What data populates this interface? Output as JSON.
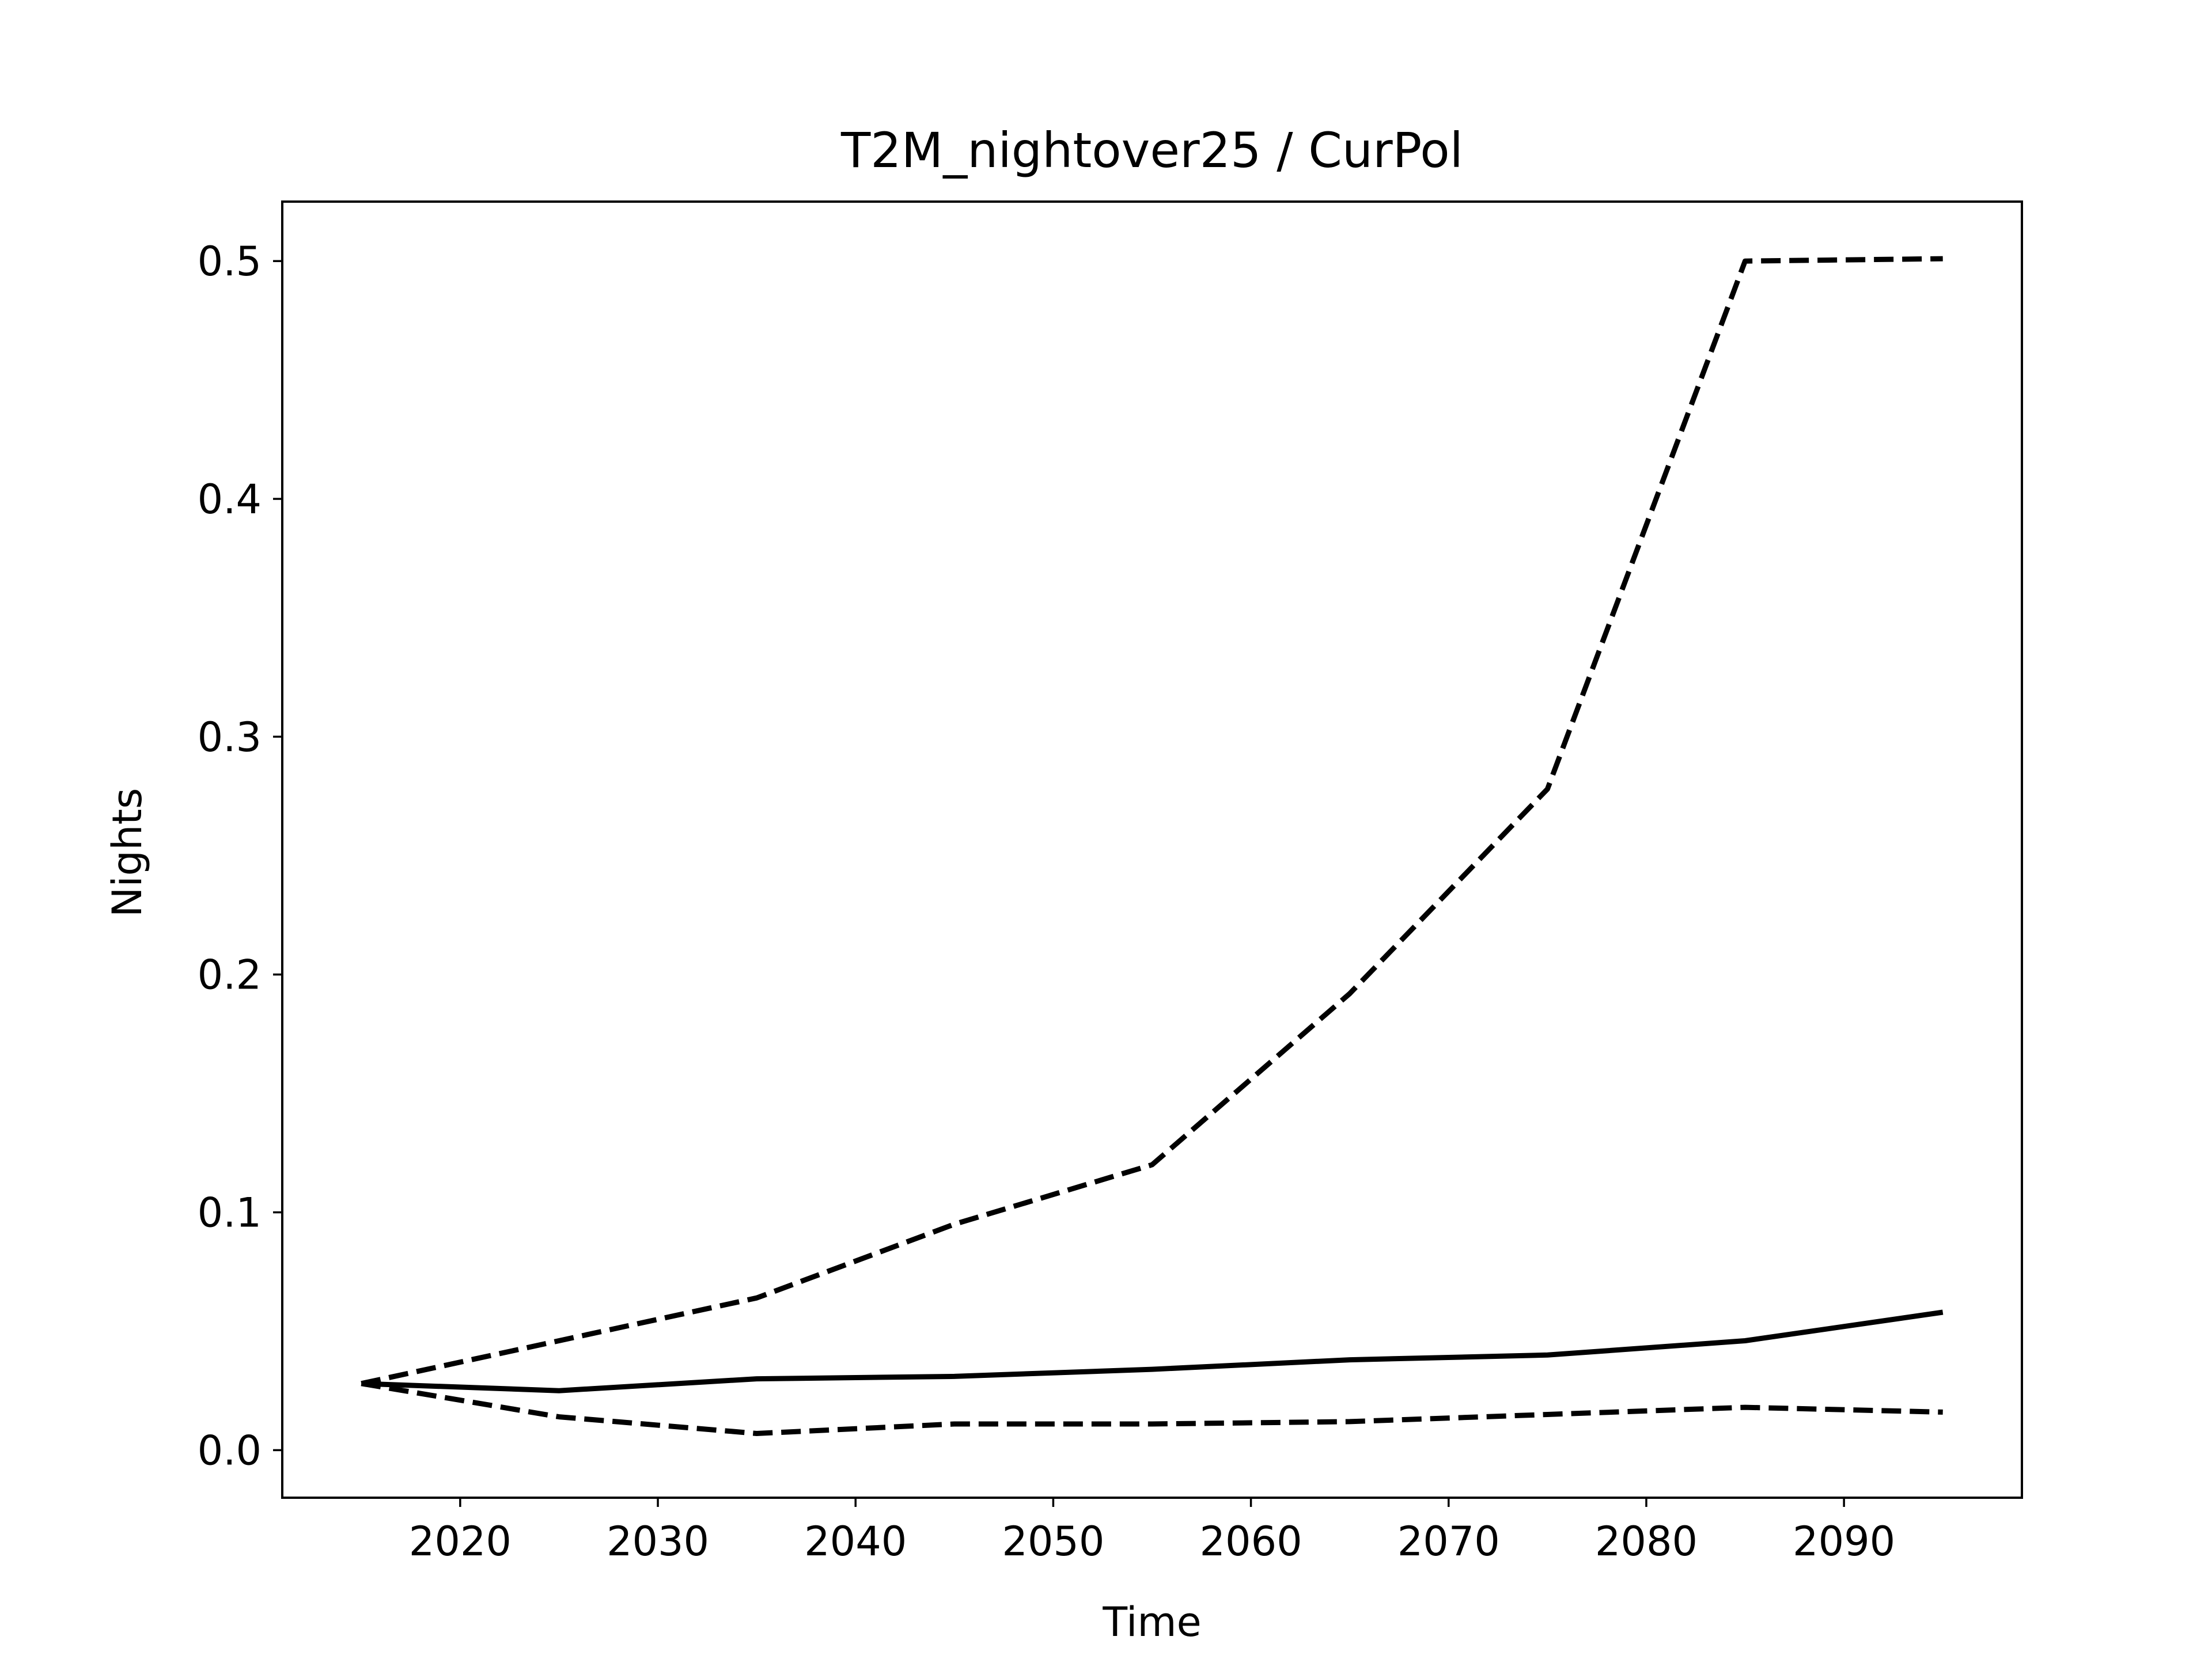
{
  "chart_data": {
    "type": "line",
    "title": "T2M_nightover25 / CurPol",
    "xlabel": "Time",
    "ylabel": "Nights",
    "xlim": [
      2011,
      2099
    ],
    "ylim": [
      -0.02,
      0.525
    ],
    "xticks": [
      2020,
      2030,
      2040,
      2050,
      2060,
      2070,
      2080,
      2090
    ],
    "yticks": [
      0.0,
      0.1,
      0.2,
      0.3,
      0.4,
      0.5
    ],
    "ytick_labels": [
      "0.0",
      "0.1",
      "0.2",
      "0.3",
      "0.4",
      "0.5"
    ],
    "grid": false,
    "legend": "none",
    "x": [
      2015,
      2025,
      2035,
      2045,
      2055,
      2065,
      2075,
      2085,
      2095
    ],
    "series": [
      {
        "style": "solid",
        "color": "#000000",
        "values": [
          0.028,
          0.025,
          0.03,
          0.031,
          0.034,
          0.038,
          0.04,
          0.046,
          0.058
        ]
      },
      {
        "style": "dashed",
        "color": "#000000",
        "values": [
          0.028,
          0.046,
          0.064,
          0.095,
          0.12,
          0.192,
          0.278,
          0.5,
          0.501
        ]
      },
      {
        "style": "dashed",
        "color": "#000000",
        "values": [
          0.028,
          0.014,
          0.007,
          0.011,
          0.011,
          0.012,
          0.015,
          0.018,
          0.016
        ]
      }
    ]
  }
}
